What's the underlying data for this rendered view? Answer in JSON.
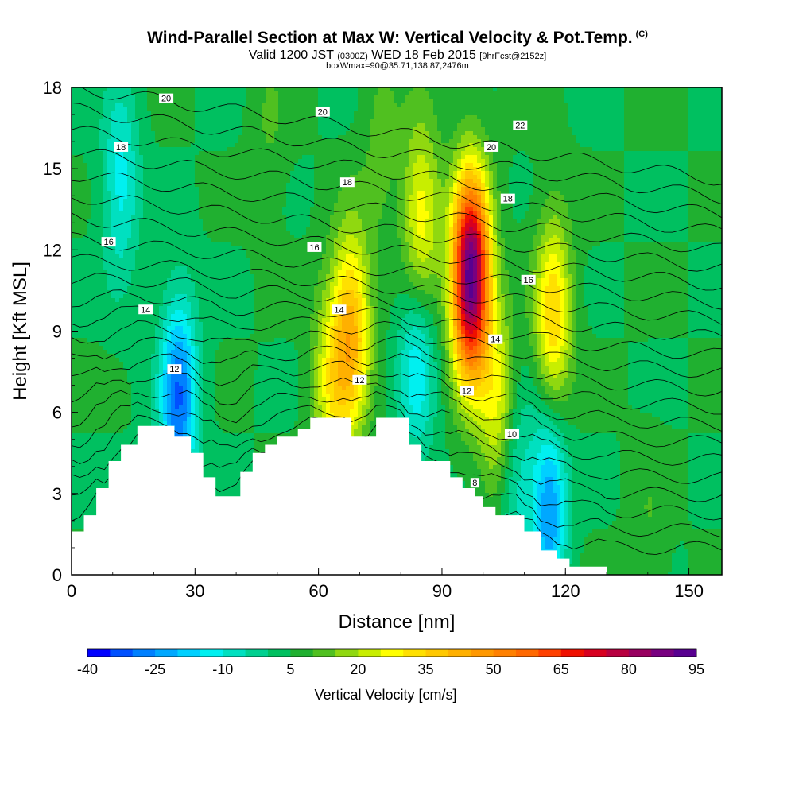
{
  "title": {
    "main": "Wind-Parallel Section at Max W: Vertical Velocity & Pot.Temp.",
    "copyright": "(C)",
    "valid_prefix": "Valid 1200 JST",
    "valid_utc": "(0300Z)",
    "valid_date": "WED 18 Feb 2015",
    "forecast": "[9hrFcst@2152z]",
    "box": "boxWmax=90@35.71,138.87,2476m"
  },
  "chart_data": {
    "type": "heatmap",
    "xlabel": "Distance [nm]",
    "ylabel": "Height [Kft MSL]",
    "xlim": [
      0,
      158
    ],
    "ylim": [
      0,
      18
    ],
    "x_ticks": [
      0,
      30,
      60,
      90,
      120,
      150
    ],
    "y_ticks": [
      0,
      3,
      6,
      9,
      12,
      15,
      18
    ],
    "terrain_kft": [
      [
        0,
        1.6
      ],
      [
        3,
        1.6
      ],
      [
        3,
        2.2
      ],
      [
        6,
        2.2
      ],
      [
        6,
        3.2
      ],
      [
        9,
        3.2
      ],
      [
        9,
        4.2
      ],
      [
        12,
        4.2
      ],
      [
        12,
        4.8
      ],
      [
        16,
        4.8
      ],
      [
        16,
        5.5
      ],
      [
        25,
        5.5
      ],
      [
        25,
        5.1
      ],
      [
        29,
        5.1
      ],
      [
        29,
        4.5
      ],
      [
        32,
        4.5
      ],
      [
        32,
        3.6
      ],
      [
        35,
        3.6
      ],
      [
        35,
        2.9
      ],
      [
        41,
        2.9
      ],
      [
        41,
        3.8
      ],
      [
        44,
        3.8
      ],
      [
        44,
        4.5
      ],
      [
        47,
        4.5
      ],
      [
        47,
        4.8
      ],
      [
        50,
        4.8
      ],
      [
        50,
        5.1
      ],
      [
        55,
        5.1
      ],
      [
        55,
        5.4
      ],
      [
        58,
        5.4
      ],
      [
        58,
        5.8
      ],
      [
        68,
        5.8
      ],
      [
        68,
        5.1
      ],
      [
        74,
        5.1
      ],
      [
        74,
        5.8
      ],
      [
        82,
        5.8
      ],
      [
        82,
        4.8
      ],
      [
        85,
        4.8
      ],
      [
        85,
        4.2
      ],
      [
        92,
        4.2
      ],
      [
        92,
        3.6
      ],
      [
        95,
        3.6
      ],
      [
        95,
        3.2
      ],
      [
        98,
        3.2
      ],
      [
        98,
        2.9
      ],
      [
        100,
        2.9
      ],
      [
        100,
        2.5
      ],
      [
        103,
        2.5
      ],
      [
        103,
        2.2
      ],
      [
        110,
        2.2
      ],
      [
        110,
        1.6
      ],
      [
        114,
        1.6
      ],
      [
        114,
        0.9
      ],
      [
        118,
        0.9
      ],
      [
        118,
        0.6
      ],
      [
        121,
        0.6
      ],
      [
        121,
        0.3
      ],
      [
        130,
        0.3
      ],
      [
        130,
        0
      ]
    ],
    "velocity_features": [
      {
        "x": 97,
        "y": 11.0,
        "peak": 95
      },
      {
        "x": 68,
        "y": 9.0,
        "peak": 40
      },
      {
        "x": 117,
        "y": 9.5,
        "peak": 35
      },
      {
        "x": 85,
        "y": 13.0,
        "peak": 30
      },
      {
        "x": 63,
        "y": 7.0,
        "peak": 25
      },
      {
        "x": 26,
        "y": 6.5,
        "peak": -30
      },
      {
        "x": 84,
        "y": 8.0,
        "peak": -15
      },
      {
        "x": 116,
        "y": 2.6,
        "peak": -25
      },
      {
        "x": 12,
        "y": 14.5,
        "peak": -12
      },
      {
        "x": 107,
        "y": 4.0,
        "peak": -12
      },
      {
        "x": 75,
        "y": 16.0,
        "peak": 12
      },
      {
        "x": 48,
        "y": 16.5,
        "peak": 10
      },
      {
        "x": 104,
        "y": 6.0,
        "peak": 30
      },
      {
        "x": 140,
        "y": 1.0,
        "peak": 10
      }
    ],
    "theta_contour_labels": [
      {
        "label": "20",
        "x": 23,
        "y": 17.6
      },
      {
        "label": "20",
        "x": 61,
        "y": 17.1
      },
      {
        "label": "22",
        "x": 109,
        "y": 16.6
      },
      {
        "label": "20",
        "x": 102,
        "y": 15.8
      },
      {
        "label": "18",
        "x": 12,
        "y": 15.8
      },
      {
        "label": "18",
        "x": 67,
        "y": 14.5
      },
      {
        "label": "18",
        "x": 106,
        "y": 13.9
      },
      {
        "label": "16",
        "x": 9,
        "y": 12.3
      },
      {
        "label": "16",
        "x": 59,
        "y": 12.1
      },
      {
        "label": "16",
        "x": 111,
        "y": 10.9
      },
      {
        "label": "14",
        "x": 18,
        "y": 9.8
      },
      {
        "label": "14",
        "x": 65,
        "y": 9.8
      },
      {
        "label": "14",
        "x": 103,
        "y": 8.7
      },
      {
        "label": "12",
        "x": 25,
        "y": 7.6
      },
      {
        "label": "12",
        "x": 70,
        "y": 7.2
      },
      {
        "label": "12",
        "x": 96,
        "y": 6.8
      },
      {
        "label": "10",
        "x": 107,
        "y": 5.2
      },
      {
        "label": "8",
        "x": 98,
        "y": 3.4
      }
    ],
    "colorbar": {
      "label": "Vertical Velocity [cm/s]",
      "tick_labels": [
        "-40",
        "-25",
        "-10",
        "5",
        "20",
        "35",
        "50",
        "65",
        "80",
        "95"
      ],
      "min": -40,
      "max": 95,
      "step": 5,
      "colors": [
        "#0000ff",
        "#0050ff",
        "#0080ff",
        "#00a8ff",
        "#00d0ff",
        "#00f0f0",
        "#00e0c0",
        "#00d090",
        "#00c060",
        "#20b030",
        "#50c020",
        "#90d810",
        "#c8ee00",
        "#ffff00",
        "#ffe000",
        "#ffc800",
        "#ffb000",
        "#ff9800",
        "#ff8000",
        "#ff6800",
        "#ff4000",
        "#f01000",
        "#d80020",
        "#b80040",
        "#980060",
        "#780080",
        "#580090"
      ]
    }
  }
}
